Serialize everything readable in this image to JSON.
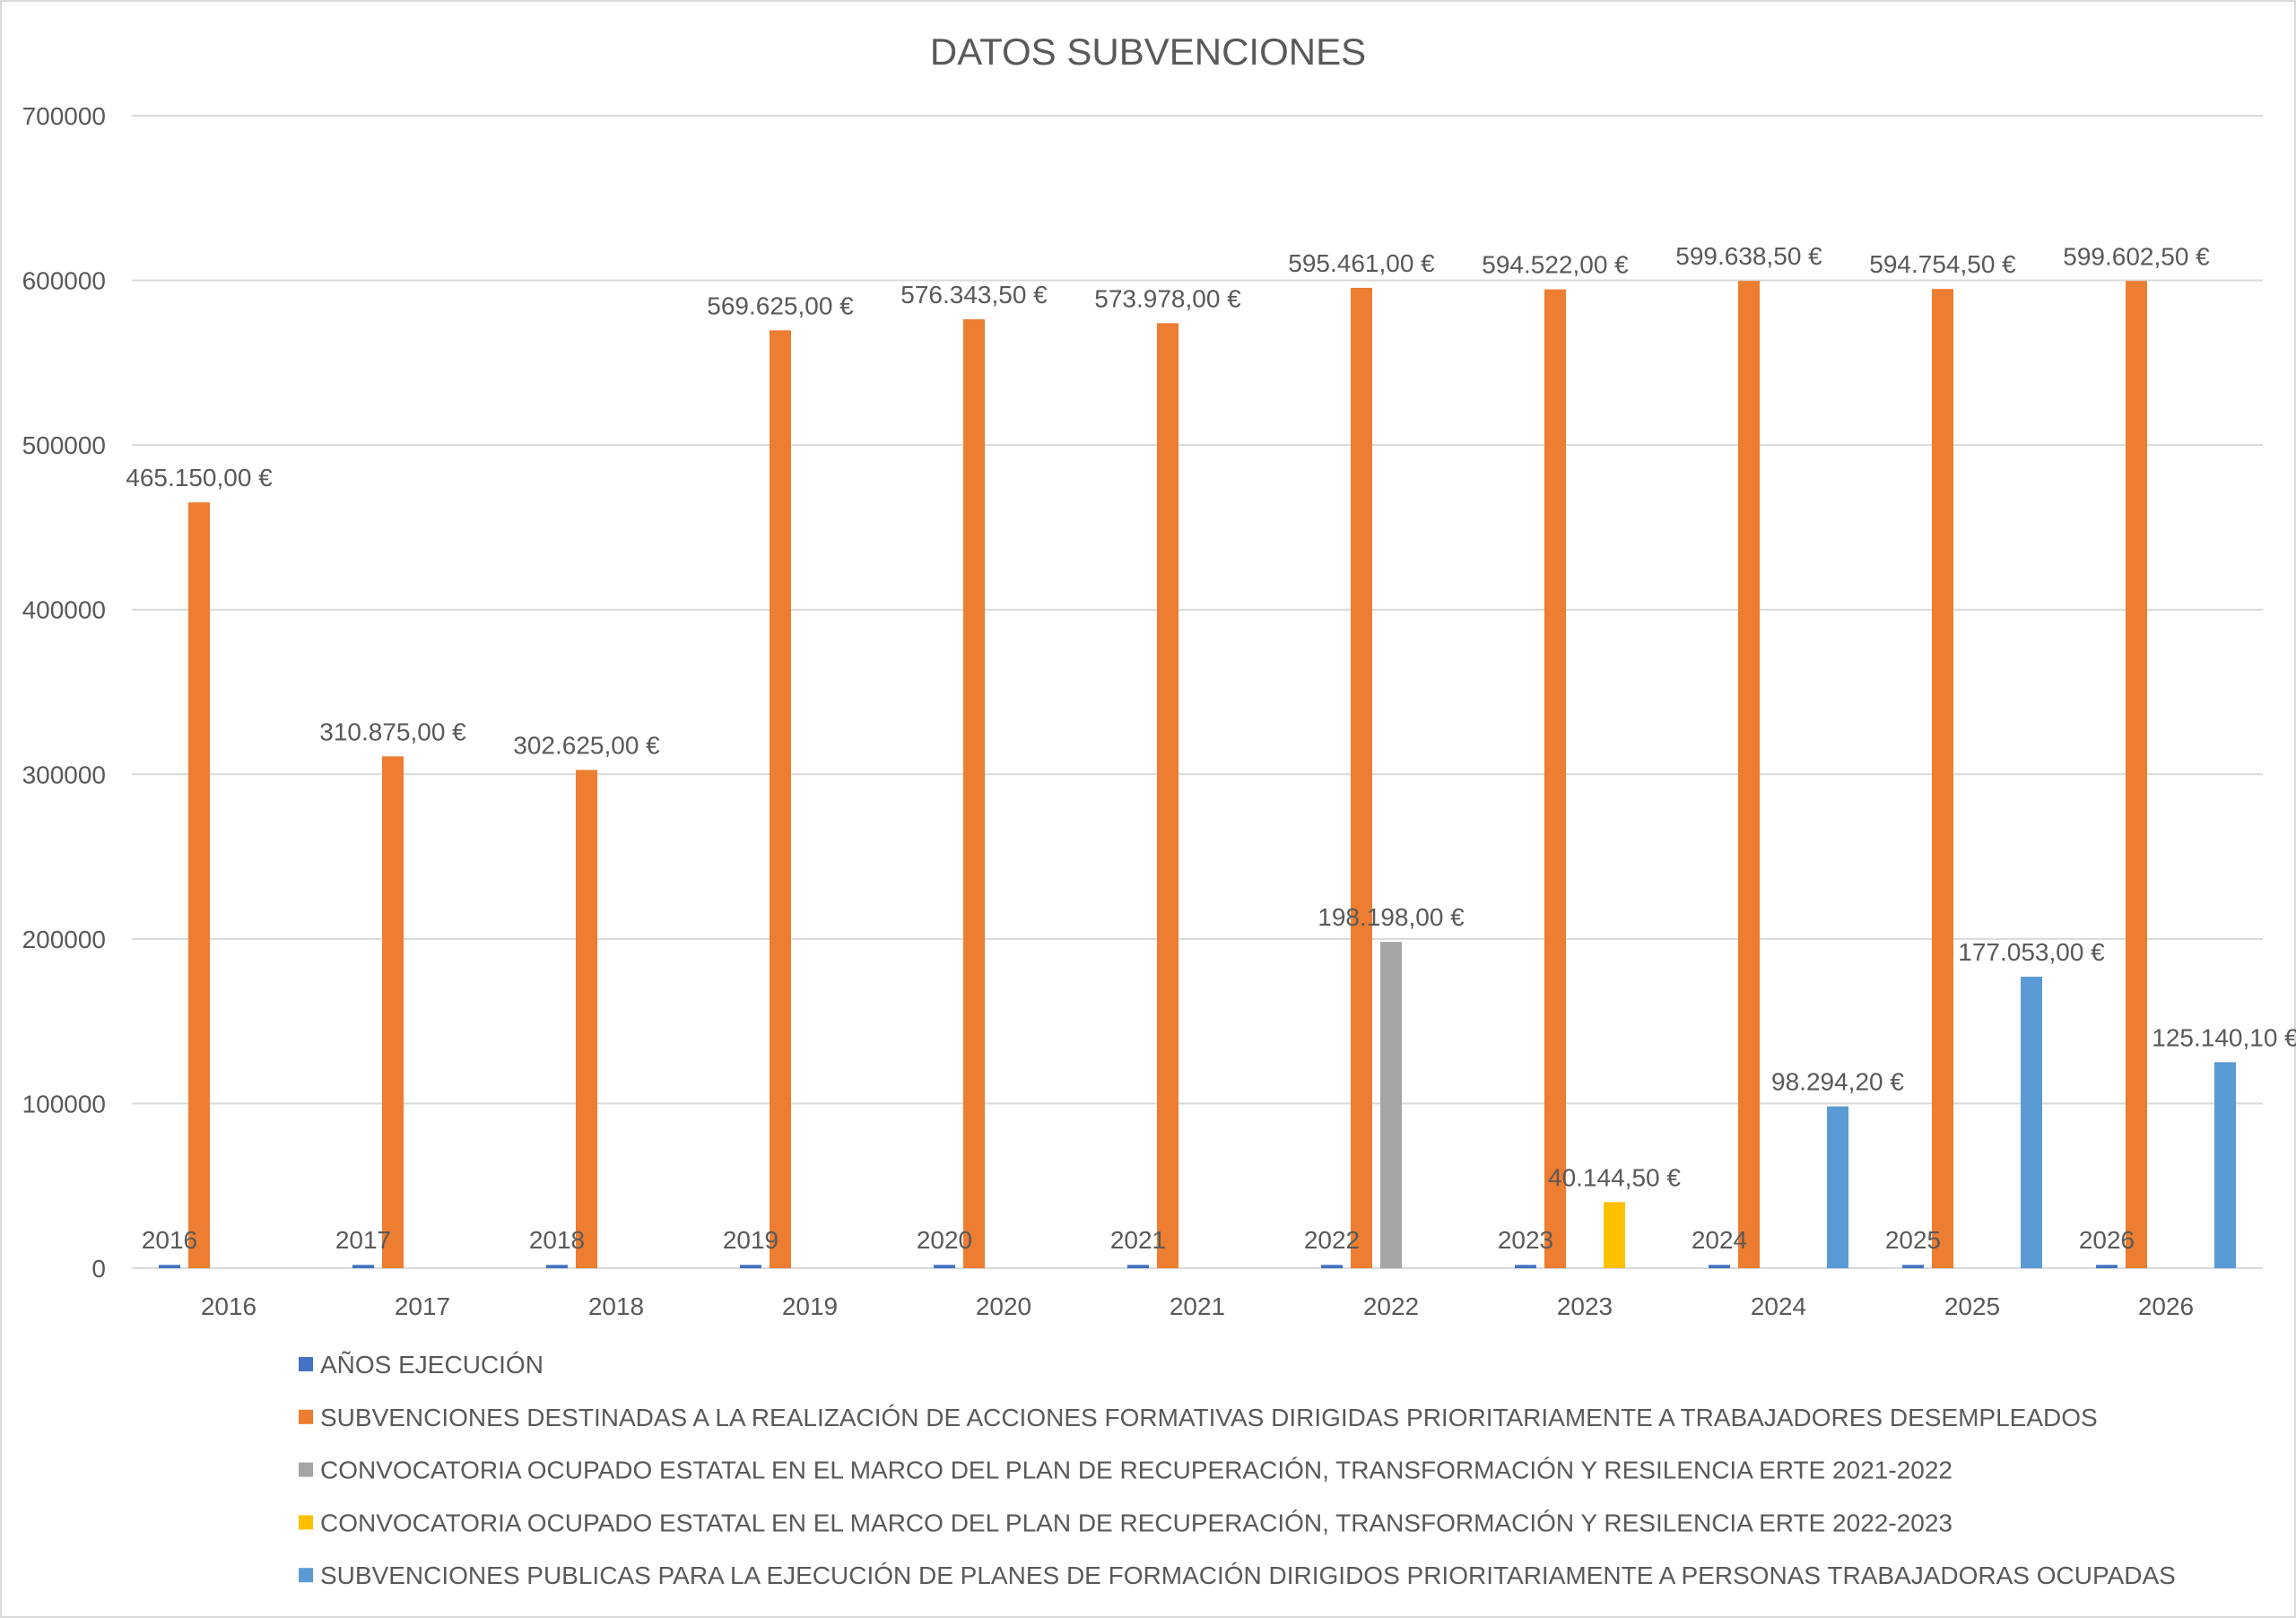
{
  "chart_data": {
    "type": "bar",
    "title": "DATOS SUBVENCIONES",
    "xlabel": "",
    "ylabel": "",
    "ylim": [
      0,
      700000
    ],
    "yticks": [
      "0",
      "100000",
      "200000",
      "300000",
      "400000",
      "500000",
      "600000",
      "700000"
    ],
    "grid": true,
    "legend_position": "bottom",
    "categories": [
      "2016",
      "2017",
      "2018",
      "2019",
      "2020",
      "2021",
      "2022",
      "2023",
      "2024",
      "2025",
      "2026"
    ],
    "series": [
      {
        "name": "AÑOS EJECUCIÓN",
        "color": "#4472C4",
        "values": [
          2016,
          2017,
          2018,
          2019,
          2020,
          2021,
          2022,
          2023,
          2024,
          2025,
          2026
        ],
        "labels": [
          "2016",
          "2017",
          "2018",
          "2019",
          "2020",
          "2021",
          "2022",
          "2023",
          "2024",
          "2025",
          "2026"
        ]
      },
      {
        "name": "SUBVENCIONES DESTINADAS A LA REALIZACIÓN DE ACCIONES FORMATIVAS DIRIGIDAS PRIORITARIAMENTE A TRABAJADORES DESEMPLEADOS",
        "color": "#ED7D31",
        "values": [
          465150,
          310875,
          302625,
          569625,
          576343.5,
          573978,
          595461,
          594522,
          599638.5,
          594754.5,
          599602.5
        ],
        "labels": [
          "465.150,00 €",
          "310.875,00 €",
          "302.625,00 €",
          "569.625,00 €",
          "576.343,50 €",
          "573.978,00 €",
          "595.461,00 €",
          "594.522,00 €",
          "599.638,50 €",
          "594.754,50 €",
          "599.602,50 €"
        ]
      },
      {
        "name": "CONVOCATORIA OCUPADO ESTATAL EN EL MARCO DEL PLAN DE RECUPERACIÓN, TRANSFORMACIÓN Y RESILENCIA ERTE 2021-2022",
        "color": "#A5A5A5",
        "values": [
          null,
          null,
          null,
          null,
          null,
          null,
          198198,
          null,
          null,
          null,
          null
        ],
        "labels": [
          null,
          null,
          null,
          null,
          null,
          null,
          "198.198,00 €",
          null,
          null,
          null,
          null
        ]
      },
      {
        "name": "CONVOCATORIA OCUPADO ESTATAL EN EL MARCO DEL PLAN DE RECUPERACIÓN, TRANSFORMACIÓN Y RESILENCIA ERTE 2022-2023",
        "color": "#FFC000",
        "values": [
          null,
          null,
          null,
          null,
          null,
          null,
          null,
          40144.5,
          null,
          null,
          null
        ],
        "labels": [
          null,
          null,
          null,
          null,
          null,
          null,
          null,
          "40.144,50 €",
          null,
          null,
          null
        ]
      },
      {
        "name": "SUBVENCIONES PUBLICAS PARA LA EJECUCIÓN DE PLANES DE FORMACIÓN DIRIGIDOS PRIORITARIAMENTE A PERSONAS TRABAJADORAS OCUPADAS",
        "color": "#5B9BD5",
        "values": [
          null,
          null,
          null,
          null,
          null,
          null,
          null,
          null,
          98294.2,
          177053,
          125140.1
        ],
        "labels": [
          null,
          null,
          null,
          null,
          null,
          null,
          null,
          null,
          "98.294,20 €",
          "177.053,00 €",
          "125.140,10 €"
        ]
      }
    ]
  }
}
